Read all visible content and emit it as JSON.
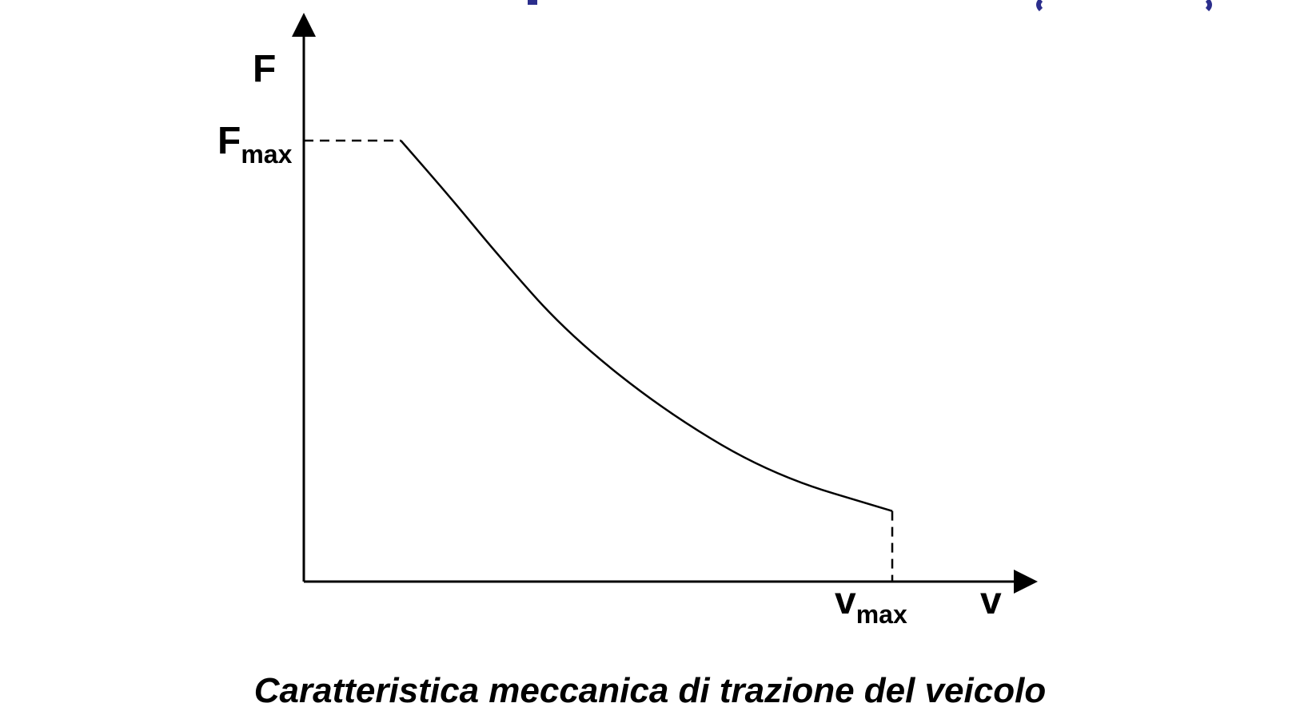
{
  "caption": "Caratteristica meccanica di trazione del veicolo",
  "colors": {
    "curve": "#000000",
    "axes": "#000000",
    "text": "#000000",
    "title_fragment": "#2b2e8c"
  },
  "chart_data": {
    "type": "line",
    "title": "",
    "xlabel": "v",
    "ylabel": "F",
    "grid": false,
    "legend": "none",
    "xlim": [
      0,
      1.25
    ],
    "ylim": [
      0,
      1.1
    ],
    "annotations": {
      "F_max": {
        "base": "F",
        "subscript": "max",
        "value": 1.0
      },
      "v_max": {
        "base": "v",
        "subscript": "max",
        "value": 1.0
      }
    },
    "series": [
      {
        "x": [
          0.0,
          0.165,
          0.25,
          0.33,
          0.45,
          0.62,
          0.8,
          1.0
        ],
        "y": [
          1.0,
          1.0,
          0.87,
          0.74,
          0.56,
          0.38,
          0.24,
          0.16
        ]
      }
    ],
    "guides": [
      {
        "style": "dashed",
        "from": [
          0.0,
          1.0
        ],
        "to": [
          0.165,
          1.0
        ]
      },
      {
        "style": "dashed",
        "from": [
          1.0,
          0.16
        ],
        "to": [
          1.0,
          0.0
        ]
      }
    ]
  }
}
